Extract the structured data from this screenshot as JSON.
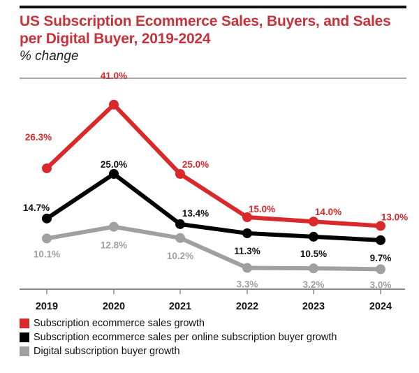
{
  "chart_data": {
    "type": "line",
    "title": "US Subscription Ecommerce Sales, Buyers, and Sales per Digital Buyer, 2019-2024",
    "subtitle": "% change",
    "categories": [
      "2019",
      "2020",
      "2021",
      "2022",
      "2023",
      "2024"
    ],
    "ylim": [
      -1.6,
      45
    ],
    "grid": false,
    "legend_placement": "bottom",
    "series": [
      {
        "name": "Subscription ecommerce sales growth",
        "color": "#d9292b",
        "values": [
          26.3,
          41.0,
          25.0,
          15.0,
          14.0,
          13.0
        ],
        "labels": [
          "26.3%",
          "41.0%",
          "25.0%",
          "15.0%",
          "14.0%",
          "13.0%"
        ]
      },
      {
        "name": "Subscription ecommerce sales per online subscription buyer growth",
        "color": "#000000",
        "values": [
          14.7,
          25.0,
          13.4,
          11.3,
          10.5,
          9.7
        ],
        "labels": [
          "14.7%",
          "25.0%",
          "13.4%",
          "11.3%",
          "10.5%",
          "9.7%"
        ]
      },
      {
        "name": "Digital subscription buyer growth",
        "color": "#a0a0a0",
        "values": [
          10.1,
          12.8,
          10.2,
          3.3,
          3.2,
          3.0
        ],
        "labels": [
          "10.1%",
          "12.8%",
          "10.2%",
          "3.3%",
          "3.2%",
          "3.0%"
        ]
      }
    ]
  }
}
